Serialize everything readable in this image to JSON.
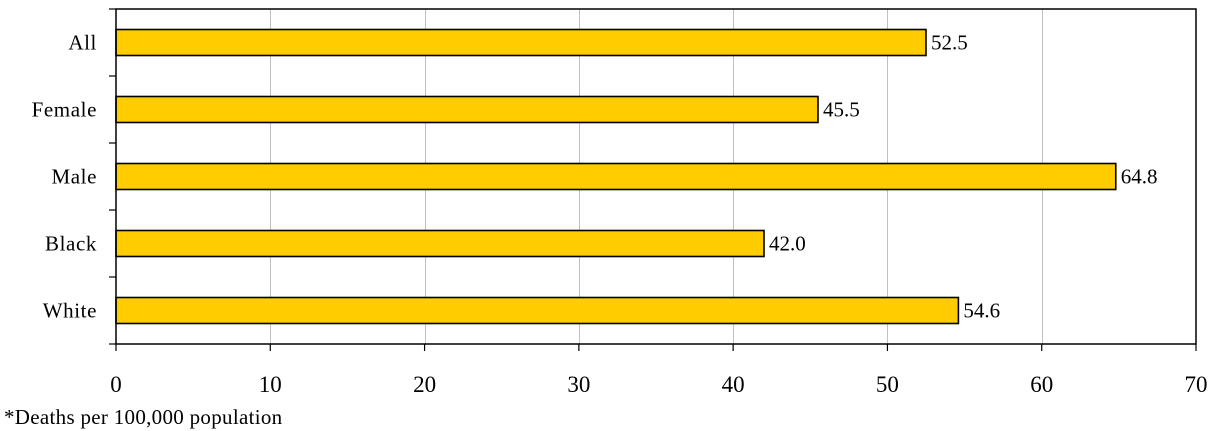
{
  "chart_data": {
    "type": "bar",
    "orientation": "horizontal",
    "categories": [
      "All",
      "Female",
      "Male",
      "Black",
      "White"
    ],
    "values": [
      52.5,
      45.5,
      64.8,
      42.0,
      54.6
    ],
    "value_labels": [
      "52.5",
      "45.5",
      "64.8",
      "42.0",
      "54.6"
    ],
    "xlim": [
      0,
      70
    ],
    "x_ticks": [
      0,
      10,
      20,
      30,
      40,
      50,
      60,
      70
    ],
    "x_tick_labels": [
      "0",
      "10",
      "20",
      "30",
      "40",
      "50",
      "60",
      "70"
    ],
    "grid": "vertical",
    "bar_color": "#FFCC00",
    "bar_edge_color": "#000000",
    "grid_color": "#C0C0C0"
  },
  "footnote": "*Deaths per 100,000 population"
}
